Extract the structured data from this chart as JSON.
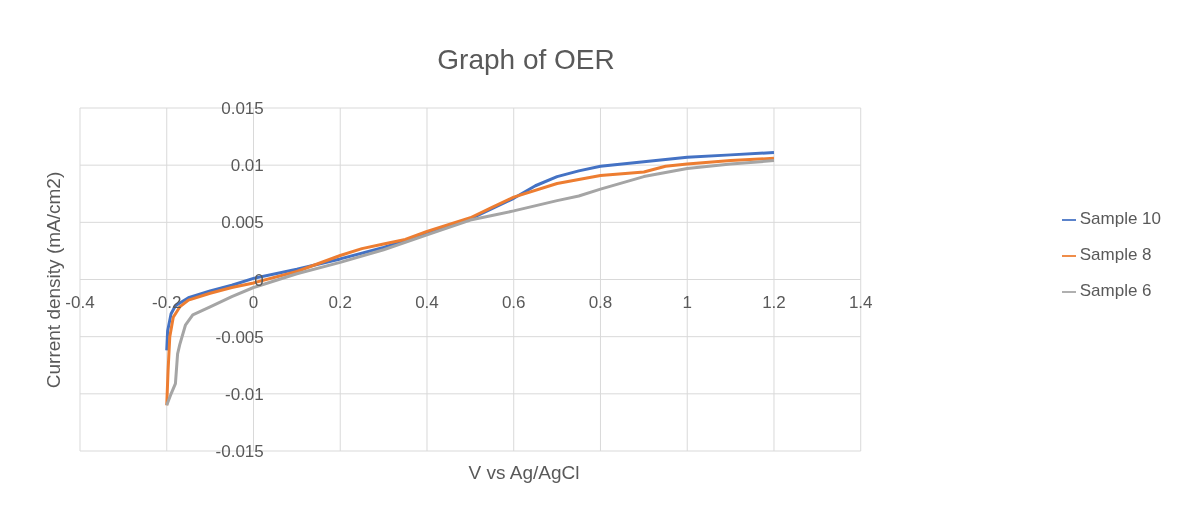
{
  "chart_data": {
    "type": "line",
    "title": "Graph of OER",
    "xlabel": "V vs Ag/AgCl",
    "ylabel": "Current density (mA/cm2)",
    "xlim": [
      -0.4,
      1.4
    ],
    "xticks": [
      -0.4,
      -0.2,
      0,
      0.2,
      0.4,
      0.6,
      0.8,
      1,
      1.2,
      1.4
    ],
    "ylim": [
      -0.015,
      0.015
    ],
    "yticks": [
      -0.015,
      -0.01,
      -0.005,
      0,
      0.005,
      0.01,
      0.015
    ],
    "grid": true,
    "legend": "right",
    "marker": "none",
    "line_style": "solid",
    "series": [
      {
        "name": "Sample 10",
        "color": "#4472c4",
        "x": [
          -0.2,
          -0.198,
          -0.19,
          -0.18,
          -0.15,
          -0.1,
          -0.05,
          0,
          0.1,
          0.2,
          0.3,
          0.4,
          0.5,
          0.6,
          0.65,
          0.7,
          0.75,
          0.8,
          0.9,
          1.0,
          1.1,
          1.2
        ],
        "values": [
          -0.0062,
          -0.0045,
          -0.003,
          -0.0023,
          -0.0016,
          -0.001,
          -0.0005,
          0.0001,
          0.0009,
          0.0018,
          0.0028,
          0.004,
          0.0053,
          0.0071,
          0.0082,
          0.009,
          0.0095,
          0.0099,
          0.0103,
          0.0107,
          0.0109,
          0.0111
        ]
      },
      {
        "name": "Sample 8",
        "color": "#ed7d31",
        "x": [
          -0.2,
          -0.197,
          -0.193,
          -0.185,
          -0.17,
          -0.15,
          -0.1,
          -0.05,
          0,
          0.1,
          0.2,
          0.25,
          0.3,
          0.35,
          0.4,
          0.5,
          0.55,
          0.6,
          0.7,
          0.8,
          0.9,
          0.95,
          1.0,
          1.1,
          1.2
        ],
        "values": [
          -0.011,
          -0.008,
          -0.005,
          -0.0033,
          -0.0024,
          -0.0018,
          -0.0012,
          -0.0007,
          -0.0003,
          0.0007,
          0.0021,
          0.0027,
          0.0031,
          0.0035,
          0.0042,
          0.0054,
          0.0063,
          0.0072,
          0.0084,
          0.0091,
          0.0094,
          0.0099,
          0.0101,
          0.0104,
          0.0106
        ]
      },
      {
        "name": "Sample 6",
        "color": "#a5a5a5",
        "x": [
          -0.2,
          -0.19,
          -0.18,
          -0.175,
          -0.17,
          -0.157,
          -0.14,
          -0.1,
          -0.05,
          0,
          0.1,
          0.2,
          0.3,
          0.4,
          0.5,
          0.55,
          0.6,
          0.7,
          0.75,
          0.8,
          0.9,
          1.0,
          1.1,
          1.2
        ],
        "values": [
          -0.011,
          -0.01,
          -0.0091,
          -0.0065,
          -0.0057,
          -0.004,
          -0.0031,
          -0.0024,
          -0.0015,
          -0.0007,
          0.0005,
          0.0015,
          0.0026,
          0.0039,
          0.0052,
          0.0056,
          0.006,
          0.0069,
          0.0073,
          0.0079,
          0.009,
          0.0097,
          0.0101,
          0.0104
        ]
      }
    ]
  }
}
